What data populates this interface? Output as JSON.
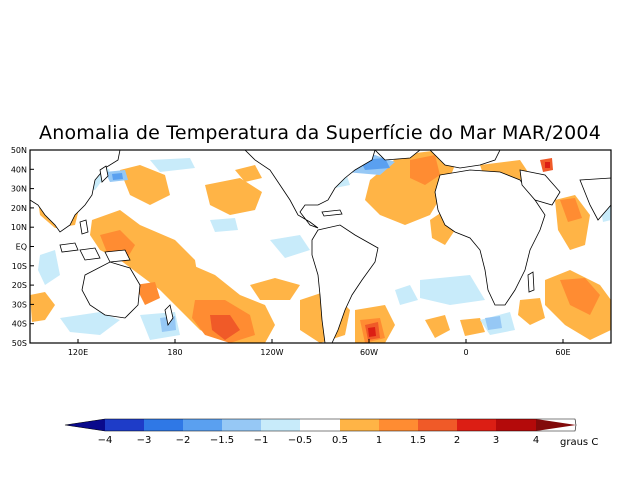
{
  "title": "Anomalia de Temperatura da Superfície do Mar MAR/2004",
  "lat_labels": [
    "50N",
    "40N",
    "30N",
    "20N",
    "10N",
    "EQ",
    "10S",
    "20S",
    "30S",
    "40S",
    "50S"
  ],
  "lon_labels": [
    "120E",
    "180",
    "120W",
    "60W",
    "0",
    "60E"
  ],
  "colorbar": {
    "colors": [
      "#0a0a8c",
      "#1e3cc8",
      "#2f78e6",
      "#5aa0f0",
      "#96c8f5",
      "#c8ebfa",
      "#ffffff",
      "#ffb446",
      "#ff8c32",
      "#f05a28",
      "#dc1e14",
      "#b40a0a",
      "#820a0a"
    ],
    "labels": [
      "-4",
      "-3",
      "-2",
      "-1.5",
      "-1",
      "-0.5",
      "0.5",
      "1",
      "1.5",
      "2",
      "3",
      "4"
    ],
    "units": "graus C"
  }
}
